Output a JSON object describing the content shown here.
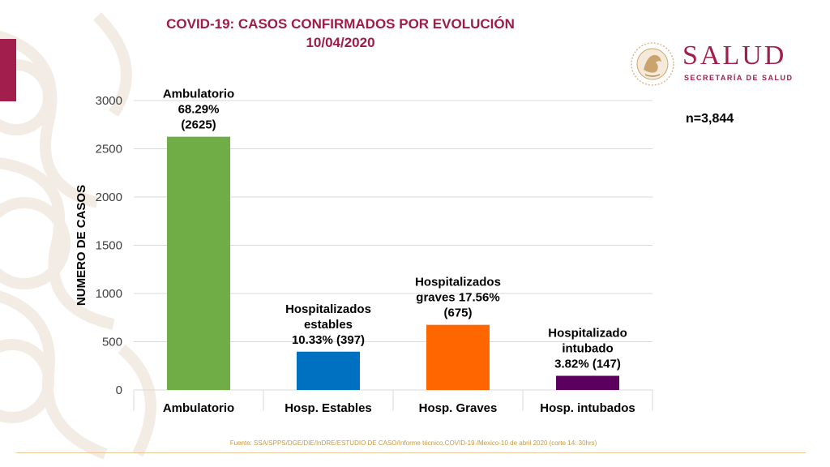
{
  "title": {
    "line1": "COVID-19: CASOS CONFIRMADOS POR EVOLUCIÓN",
    "line2": "10/04/2020"
  },
  "logo": {
    "name": "SALUD",
    "subtitle": "SECRETARÍA DE SALUD",
    "emblem_icon": "eagle-seal-icon"
  },
  "sample_size": "n=3,844",
  "source": "Fuente: SSA/SPPS/DGE/DIE/InDRE/ESTUDIO DE CASO/Informe técnico.COVID-19 /Mexico-10 de abril 2020 (corte 14: 30hrs)",
  "colors": {
    "brand": "#a21e4d",
    "ambulatorio": "#70ad47",
    "estables": "#0070c0",
    "graves": "#ff6600",
    "intubados": "#5c0060"
  },
  "chart_data": {
    "type": "bar",
    "categories": [
      "Ambulatorio",
      "Hosp. Estables",
      "Hosp. Graves",
      "Hosp. intubados"
    ],
    "values": [
      2625,
      397,
      675,
      147
    ],
    "data_labels": [
      [
        "Ambulatorio",
        "68.29%",
        "(2625)"
      ],
      [
        "Hospitalizados",
        "estables",
        "10.33% (397)"
      ],
      [
        "Hospitalizados",
        "graves 17.56%",
        "(675)"
      ],
      [
        "Hospitalizado",
        "intubado",
        "3.82% (147)"
      ]
    ],
    "bar_colors": [
      "#70ad47",
      "#0070c0",
      "#ff6600",
      "#5c0060"
    ],
    "xlabel": "",
    "ylabel": "NUMERO DE CASOS",
    "ylim": [
      0,
      3000
    ],
    "yticks": [
      0,
      500,
      1000,
      1500,
      2000,
      2500,
      3000
    ],
    "grid": true,
    "legend": "none"
  }
}
